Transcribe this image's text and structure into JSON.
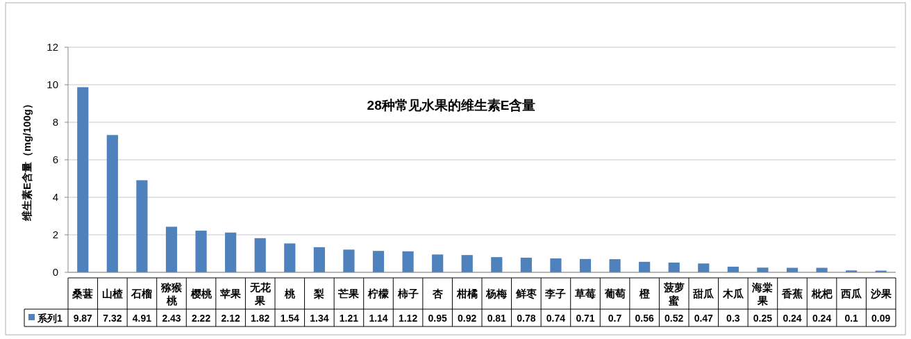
{
  "chart_data": {
    "type": "bar",
    "title": "28种常见水果的维生素E含量",
    "ylabel": "维生素E含量（mg/100g）",
    "categories": [
      "桑葚",
      "山楂",
      "石榴",
      "猕猴桃",
      "樱桃",
      "苹果",
      "无花果",
      "桃",
      "梨",
      "芒果",
      "柠檬",
      "柿子",
      "杏",
      "柑橘",
      "杨梅",
      "鲜枣",
      "李子",
      "草莓",
      "葡萄",
      "橙",
      "菠萝蜜",
      "甜瓜",
      "木瓜",
      "海棠果",
      "香蕉",
      "枇杷",
      "西瓜",
      "沙果"
    ],
    "series": [
      {
        "name": "系列1",
        "color": "#4f81bd",
        "values": [
          9.87,
          7.32,
          4.91,
          2.43,
          2.22,
          2.12,
          1.82,
          1.54,
          1.34,
          1.21,
          1.14,
          1.12,
          0.95,
          0.92,
          0.81,
          0.78,
          0.74,
          0.71,
          0.7,
          0.56,
          0.52,
          0.47,
          0.3,
          0.25,
          0.24,
          0.24,
          0.1,
          0.09
        ]
      }
    ],
    "ylim": [
      0,
      12
    ],
    "yticks": [
      0,
      2,
      4,
      6,
      8,
      10,
      12
    ],
    "grid": "y",
    "legend": "bottom",
    "data_labels": true
  }
}
